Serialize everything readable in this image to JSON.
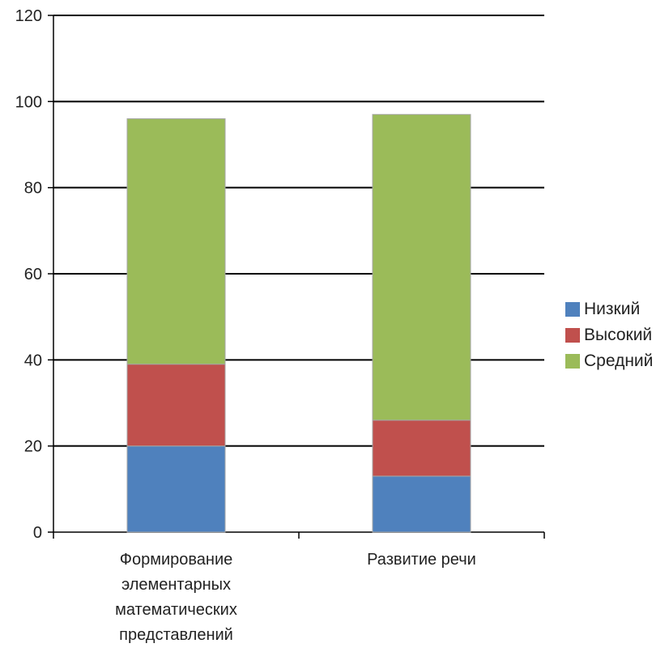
{
  "chart_data": {
    "type": "bar",
    "stacked": true,
    "categories": [
      [
        "Формирование",
        "элементарных",
        "математических",
        "представлений"
      ],
      [
        "Развитие речи"
      ]
    ],
    "series": [
      {
        "name": "Низкий",
        "color": "#4f81bd",
        "values": [
          20,
          13
        ]
      },
      {
        "name": "Высокий",
        "color": "#c0504d",
        "values": [
          19,
          13
        ]
      },
      {
        "name": "Средний",
        "color": "#9bbb59",
        "values": [
          57,
          71
        ]
      }
    ],
    "ylim": [
      0,
      120
    ],
    "yticks": [
      0,
      20,
      40,
      60,
      80,
      100,
      120
    ],
    "grid": true,
    "legend_position": "right"
  }
}
